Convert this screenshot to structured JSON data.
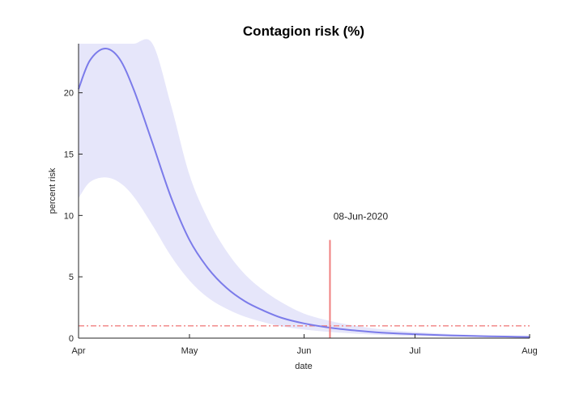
{
  "chart_data": {
    "type": "line",
    "title": "Contagion risk (%)",
    "xlabel": "date",
    "ylabel": "percent risk",
    "x_ticks": [
      "Apr",
      "May",
      "Jun",
      "Jul",
      "Aug"
    ],
    "x_tick_dates": [
      "2020-04-01",
      "2020-05-01",
      "2020-06-01",
      "2020-07-01",
      "2020-08-01"
    ],
    "xlim": [
      "2020-04-01",
      "2020-08-01"
    ],
    "y_ticks": [
      0,
      5,
      10,
      15,
      20
    ],
    "ylim": [
      0,
      24
    ],
    "grid": false,
    "series": [
      {
        "role": "estimate",
        "color": "#7b7bea",
        "x": [
          "2020-04-01",
          "2020-04-04",
          "2020-04-08",
          "2020-04-12",
          "2020-04-16",
          "2020-04-21",
          "2020-04-26",
          "2020-05-01",
          "2020-05-06",
          "2020-05-11",
          "2020-05-16",
          "2020-05-21",
          "2020-05-26",
          "2020-06-01",
          "2020-06-08",
          "2020-06-15",
          "2020-06-22",
          "2020-07-01",
          "2020-07-11",
          "2020-07-21",
          "2020-08-01"
        ],
        "y": [
          20.3,
          22.6,
          23.6,
          22.8,
          20.2,
          15.9,
          11.5,
          8.0,
          5.7,
          4.1,
          3.0,
          2.25,
          1.65,
          1.2,
          0.85,
          0.62,
          0.45,
          0.32,
          0.22,
          0.15,
          0.1
        ]
      },
      {
        "role": "confidence-band",
        "color": "#e6e6fa",
        "x": [
          "2020-04-01",
          "2020-04-04",
          "2020-04-08",
          "2020-04-12",
          "2020-04-16",
          "2020-04-21",
          "2020-04-26",
          "2020-05-01",
          "2020-05-06",
          "2020-05-11",
          "2020-05-16",
          "2020-05-21",
          "2020-05-26",
          "2020-06-01",
          "2020-06-08",
          "2020-06-15",
          "2020-06-22",
          "2020-07-01",
          "2020-07-11",
          "2020-07-21",
          "2020-08-01"
        ],
        "upper": [
          24,
          24,
          24,
          24,
          24,
          24,
          19.0,
          13.3,
          9.7,
          7.1,
          5.2,
          3.9,
          2.9,
          2.0,
          1.4,
          1.0,
          0.72,
          0.5,
          0.33,
          0.22,
          0.14
        ],
        "lower": [
          11.4,
          12.7,
          13.1,
          12.7,
          11.5,
          9.2,
          6.7,
          4.7,
          3.3,
          2.4,
          1.75,
          1.3,
          0.95,
          0.7,
          0.5,
          0.36,
          0.26,
          0.18,
          0.12,
          0.08,
          0.05
        ]
      }
    ],
    "reference_line": {
      "y": 1,
      "color": "#f08080",
      "style": "dash-dot"
    },
    "annotation": {
      "date": "2020-06-08",
      "label": "08-Jun-2020",
      "y_top": 8,
      "color": "#f08080"
    }
  }
}
